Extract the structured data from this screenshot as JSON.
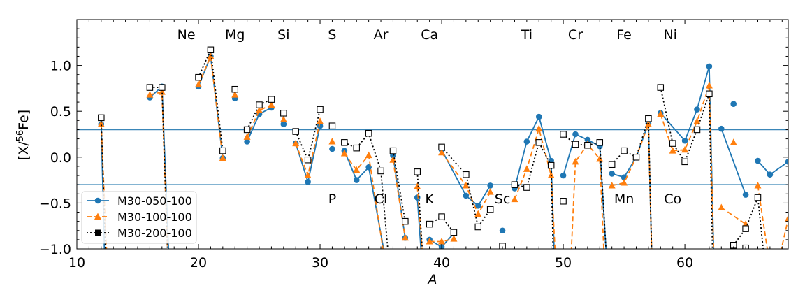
{
  "chart_data": {
    "type": "line",
    "xlabel": "A",
    "ylabel": "[X/",
    "ylabel_sup": "56",
    "ylabel_tail": "Fe]",
    "xlim": [
      10,
      68.5
    ],
    "ylim": [
      -1.0,
      1.5
    ],
    "xticks": [
      10,
      20,
      30,
      40,
      50,
      60
    ],
    "xtick_labels": [
      "10",
      "20",
      "30",
      "40",
      "50",
      "60"
    ],
    "yticks": [
      -1.0,
      -0.5,
      0.0,
      0.5,
      1.0
    ],
    "ytick_labels": [
      "−1.0",
      "−0.5",
      "0.0",
      "0.5",
      "1.0"
    ],
    "hlines": {
      "values": [
        0.3,
        -0.3
      ],
      "color": "#3a86b8"
    },
    "element_labels_top": [
      {
        "text": "Ne",
        "x": 19.0
      },
      {
        "text": "Mg",
        "x": 23.0
      },
      {
        "text": "Si",
        "x": 27.0
      },
      {
        "text": "S",
        "x": 31.0
      },
      {
        "text": "Ar",
        "x": 35.0
      },
      {
        "text": "Ca",
        "x": 39.0
      },
      {
        "text": "Ti",
        "x": 47.0
      },
      {
        "text": "Cr",
        "x": 51.0
      },
      {
        "text": "Fe",
        "x": 55.0
      },
      {
        "text": "Ni",
        "x": 58.8
      }
    ],
    "element_labels_bottom": [
      {
        "text": "P",
        "x": 31.0
      },
      {
        "text": "Cl",
        "x": 35.0
      },
      {
        "text": "K",
        "x": 39.0
      },
      {
        "text": "Sc",
        "x": 45.0
      },
      {
        "text": "Mn",
        "x": 55.0
      },
      {
        "text": "Co",
        "x": 59.0
      }
    ],
    "legend": {
      "position": "lower-left"
    },
    "series": [
      {
        "name": "M30-050-100",
        "color": "#1f77b4",
        "line": "solid",
        "marker": "circle",
        "segments": [
          [
            [
              12,
              0.36
            ],
            [
              12.3,
              -1.2
            ]
          ],
          [
            [
              16,
              0.65
            ],
            [
              17,
              0.77
            ],
            [
              17.6,
              -1.2
            ]
          ],
          [
            [
              20,
              0.77
            ],
            [
              21,
              1.1
            ],
            [
              22,
              -0.01
            ]
          ],
          [
            [
              23,
              0.64
            ]
          ],
          [
            [
              24,
              0.17
            ],
            [
              25,
              0.47
            ],
            [
              26,
              0.54
            ]
          ],
          [
            [
              27,
              0.36
            ]
          ],
          [
            [
              28,
              0.15
            ],
            [
              29,
              -0.27
            ],
            [
              30,
              0.34
            ]
          ],
          [
            [
              31,
              0.09
            ]
          ],
          [
            [
              32,
              0.07
            ],
            [
              33,
              -0.25
            ],
            [
              34,
              -0.11
            ],
            [
              35.5,
              -1.2
            ]
          ],
          [
            [
              36,
              0.02
            ],
            [
              37,
              -0.88
            ]
          ],
          [
            [
              38,
              -0.44
            ],
            [
              38.4,
              -1.2
            ]
          ],
          [
            [
              39,
              -0.9
            ],
            [
              40,
              -0.98
            ],
            [
              41,
              -0.83
            ]
          ],
          [
            [
              40,
              0.08
            ],
            [
              42,
              -0.42
            ],
            [
              43,
              -0.53
            ],
            [
              44,
              -0.31
            ]
          ],
          [
            [
              45,
              -0.8
            ]
          ],
          [
            [
              46,
              -0.34
            ],
            [
              47,
              0.17
            ],
            [
              48,
              0.44
            ],
            [
              49,
              -0.04
            ],
            [
              49.3,
              -1.2
            ]
          ],
          [
            [
              50,
              -0.2
            ],
            [
              51,
              0.25
            ],
            [
              52,
              0.19
            ],
            [
              53,
              0.12
            ],
            [
              53.6,
              -1.2
            ]
          ],
          [
            [
              54,
              -0.18
            ],
            [
              55,
              -0.22
            ],
            [
              56,
              0.0
            ],
            [
              57,
              0.37
            ],
            [
              57.3,
              -1.2
            ]
          ],
          [
            [
              58,
              0.48
            ],
            [
              60,
              0.18
            ],
            [
              61,
              0.52
            ],
            [
              62,
              0.99
            ],
            [
              62.4,
              -1.2
            ]
          ],
          [
            [
              63,
              0.31
            ],
            [
              65,
              -0.41
            ]
          ],
          [
            [
              64,
              0.58
            ]
          ],
          [
            [
              66,
              -0.04
            ],
            [
              67,
              -0.19
            ],
            [
              68.5,
              -0.05
            ]
          ]
        ]
      },
      {
        "name": "M30-100-100",
        "color": "#ff7f0e",
        "line": "dashed",
        "marker": "triangle",
        "segments": [
          [
            [
              12,
              0.36
            ],
            [
              12.5,
              -1.2
            ]
          ],
          [
            [
              16,
              0.68
            ],
            [
              17,
              0.71
            ],
            [
              17.5,
              -1.2
            ]
          ],
          [
            [
              20,
              0.79
            ],
            [
              21,
              1.1
            ],
            [
              22,
              -0.01
            ]
          ],
          [
            [
              23,
              0.68
            ]
          ],
          [
            [
              24,
              0.22
            ],
            [
              25,
              0.51
            ],
            [
              26,
              0.57
            ]
          ],
          [
            [
              27,
              0.41
            ]
          ],
          [
            [
              28,
              0.15
            ],
            [
              29,
              -0.2
            ],
            [
              30,
              0.39
            ]
          ],
          [
            [
              31,
              0.17
            ]
          ],
          [
            [
              32,
              0.04
            ],
            [
              33,
              -0.14
            ],
            [
              34,
              0.02
            ],
            [
              35.4,
              -1.2
            ]
          ],
          [
            [
              36,
              -0.03
            ],
            [
              37,
              -0.88
            ]
          ],
          [
            [
              38,
              -0.32
            ],
            [
              38.5,
              -1.2
            ]
          ],
          [
            [
              39,
              -0.92
            ],
            [
              40,
              -0.92
            ],
            [
              41,
              -0.89
            ]
          ],
          [
            [
              40,
              0.05
            ],
            [
              42,
              -0.31
            ],
            [
              43,
              -0.62
            ],
            [
              44,
              -0.38
            ]
          ],
          [
            [
              46,
              -0.46
            ],
            [
              47,
              -0.13
            ],
            [
              48,
              0.31
            ],
            [
              49,
              -0.2
            ],
            [
              49.4,
              -1.2
            ]
          ],
          [
            [
              50.6,
              -1.2
            ],
            [
              51,
              -0.05
            ],
            [
              52,
              0.14
            ],
            [
              53,
              -0.02
            ],
            [
              53.4,
              -1.2
            ]
          ],
          [
            [
              54,
              -0.31
            ],
            [
              55,
              -0.28
            ],
            [
              56,
              0.0
            ],
            [
              57,
              0.36
            ],
            [
              57.3,
              -1.2
            ]
          ],
          [
            [
              58,
              0.47
            ],
            [
              59,
              0.07
            ],
            [
              60,
              0.08
            ],
            [
              61,
              0.39
            ],
            [
              62,
              0.78
            ],
            [
              62.4,
              -1.2
            ]
          ],
          [
            [
              63,
              -0.55
            ],
            [
              65,
              -0.73
            ]
          ],
          [
            [
              64,
              0.16
            ]
          ],
          [
            [
              66,
              -0.31
            ],
            [
              67,
              -1.2
            ]
          ],
          [
            [
              67.6,
              -1.2
            ],
            [
              68.5,
              -0.67
            ]
          ]
        ]
      },
      {
        "name": "M30-200-100",
        "color": "#000000",
        "line": "dotted",
        "marker": "square",
        "segments": [
          [
            [
              12,
              0.43
            ],
            [
              12.4,
              -1.2
            ]
          ],
          [
            [
              16,
              0.76
            ],
            [
              17,
              0.76
            ],
            [
              17.5,
              -1.2
            ]
          ],
          [
            [
              20,
              0.87
            ],
            [
              21,
              1.17
            ],
            [
              22,
              0.07
            ]
          ],
          [
            [
              23,
              0.74
            ]
          ],
          [
            [
              24,
              0.3
            ],
            [
              25,
              0.57
            ],
            [
              26,
              0.63
            ]
          ],
          [
            [
              27,
              0.48
            ]
          ],
          [
            [
              28,
              0.28
            ],
            [
              29,
              -0.03
            ],
            [
              30,
              0.52
            ]
          ],
          [
            [
              31,
              0.34
            ]
          ],
          [
            [
              32,
              0.16
            ],
            [
              33,
              0.1
            ],
            [
              34,
              0.26
            ],
            [
              35,
              -0.15
            ],
            [
              35.7,
              -1.2
            ]
          ],
          [
            [
              36,
              0.07
            ],
            [
              37,
              -0.7
            ]
          ],
          [
            [
              38,
              -0.16
            ],
            [
              38.5,
              -1.2
            ]
          ],
          [
            [
              39,
              -0.73
            ],
            [
              40,
              -0.65
            ],
            [
              41,
              -0.82
            ]
          ],
          [
            [
              40,
              0.11
            ],
            [
              42,
              -0.19
            ],
            [
              43,
              -0.76
            ],
            [
              44,
              -0.57
            ]
          ],
          [
            [
              45,
              -0.97
            ]
          ],
          [
            [
              46,
              -0.3
            ],
            [
              47,
              -0.33
            ],
            [
              48,
              0.16
            ],
            [
              49,
              -0.09
            ],
            [
              49.2,
              -1.2
            ]
          ],
          [
            [
              50,
              0.25
            ],
            [
              51,
              0.14
            ],
            [
              52,
              0.13
            ],
            [
              53,
              0.16
            ],
            [
              53.6,
              -1.2
            ]
          ],
          [
            [
              50,
              -0.48
            ]
          ],
          [
            [
              54,
              -0.08
            ],
            [
              55,
              0.07
            ],
            [
              56,
              0.0
            ],
            [
              57,
              0.42
            ],
            [
              57.3,
              -1.2
            ]
          ],
          [
            [
              58,
              0.76
            ],
            [
              59,
              0.15
            ],
            [
              60,
              -0.05
            ],
            [
              61,
              0.3
            ],
            [
              62,
              0.69
            ],
            [
              62.3,
              -1.2
            ]
          ],
          [
            [
              64,
              -0.96
            ],
            [
              65,
              -0.78
            ],
            [
              66,
              -0.44
            ],
            [
              66.6,
              -1.2
            ]
          ],
          [
            [
              65,
              -0.99
            ]
          ]
        ]
      }
    ]
  }
}
